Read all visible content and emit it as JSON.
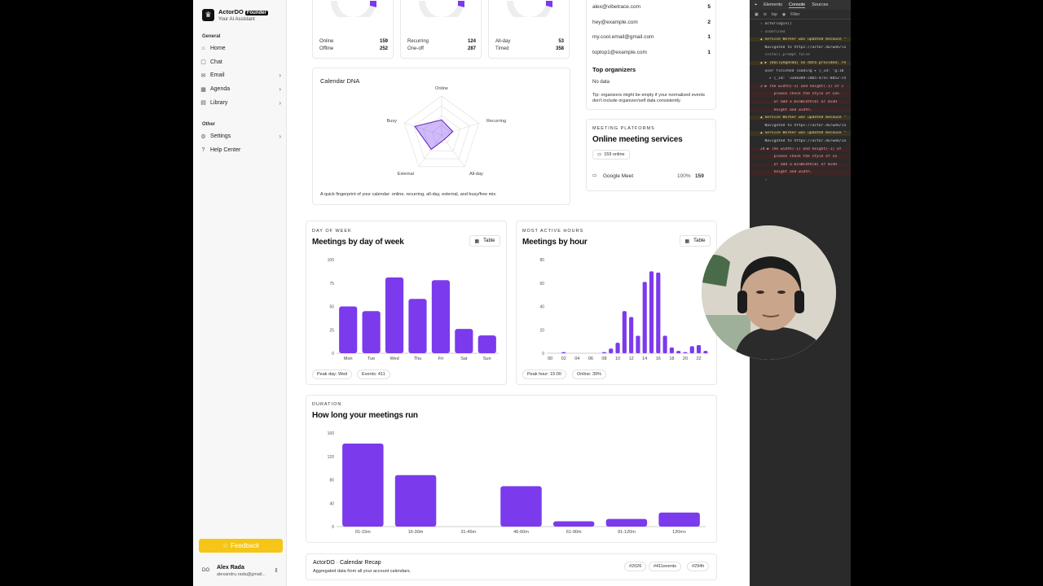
{
  "sidebar": {
    "brand": {
      "name": "ActorDO",
      "badge": "Founder",
      "subtitle": "Your AI Assistant"
    },
    "general_label": "General",
    "items": [
      {
        "label": "Home",
        "icon": "home-icon",
        "chevron": false
      },
      {
        "label": "Chat",
        "icon": "chat-icon",
        "chevron": false
      },
      {
        "label": "Email",
        "icon": "mail-icon",
        "chevron": true
      },
      {
        "label": "Agenda",
        "icon": "calendar-icon",
        "chevron": true
      },
      {
        "label": "Library",
        "icon": "book-icon",
        "chevron": true
      }
    ],
    "other_label": "Other",
    "other_items": [
      {
        "label": "Settings",
        "icon": "gear-icon",
        "chevron": true
      },
      {
        "label": "Help Center",
        "icon": "help-icon",
        "chevron": false
      }
    ],
    "feedback_label": "Feedback",
    "user": {
      "initials": "DO",
      "name": "Alex Rada",
      "email": "alexandru.rada@gmail..."
    }
  },
  "stats": {
    "online": {
      "k1": "Online",
      "v1": "159",
      "k2": "Offline",
      "v2": "252"
    },
    "recurring": {
      "k1": "Recurring",
      "v1": "124",
      "k2": "One-off",
      "v2": "287"
    },
    "allday": {
      "k1": "All-day",
      "v1": "53",
      "k2": "Timed",
      "v2": "358"
    }
  },
  "attendees": [
    {
      "email": "alex@vibetrace.com",
      "count": "5"
    },
    {
      "email": "hey@example.com",
      "count": "2"
    },
    {
      "email": "my.cool.email@gmail.com",
      "count": "1"
    },
    {
      "email": "toptop1@example.com",
      "count": "1"
    }
  ],
  "organizers": {
    "title": "Top organizers",
    "empty": "No data",
    "tip": "Tip: organizers might be empty if your normalized events don't include organizer/self data consistently."
  },
  "dna": {
    "title": "Calendar DNA",
    "axes": [
      "Online",
      "Recurring",
      "All-day",
      "External",
      "Busy"
    ],
    "values": [
      0.39,
      0.3,
      0.13,
      0.45,
      0.72
    ],
    "caption": "A quick fingerprint of your calendar: online, recurring, all-day, external, and busy/free mix."
  },
  "platforms": {
    "eyebrow": "MEETING PLATFORMS",
    "title": "Online meeting services",
    "chip": "159 online",
    "rows": [
      {
        "name": "Google Meet",
        "pct": "100%",
        "count": "159"
      }
    ]
  },
  "day_chart": {
    "eyebrow": "DAY OF WEEK",
    "title": "Meetings by day of week",
    "table_label": "Table",
    "chips": [
      "Peak day: Wed",
      "Events: 411"
    ],
    "chart_data": {
      "type": "bar",
      "categories": [
        "Mon",
        "Tue",
        "Wed",
        "Thu",
        "Fri",
        "Sat",
        "Sun"
      ],
      "values": [
        50,
        45,
        81,
        58,
        78,
        26,
        19
      ],
      "ylim": [
        0,
        100
      ],
      "yticks": [
        0,
        25,
        50,
        75,
        100
      ],
      "color": "#7c3aed"
    }
  },
  "hour_chart": {
    "eyebrow": "MOST ACTIVE HOURS",
    "title": "Meetings by hour",
    "table_label": "Table",
    "chips": [
      "Peak hour: 15:00",
      "Online: 39%"
    ],
    "chart_data": {
      "type": "bar",
      "categories": [
        "00",
        "01",
        "02",
        "03",
        "04",
        "05",
        "06",
        "07",
        "08",
        "09",
        "10",
        "11",
        "12",
        "13",
        "14",
        "15",
        "16",
        "17",
        "18",
        "19",
        "20",
        "21",
        "22",
        "23"
      ],
      "tick_labels": [
        "00",
        "02",
        "04",
        "06",
        "08",
        "10",
        "12",
        "14",
        "16",
        "18",
        "20",
        "22"
      ],
      "values": [
        0,
        0,
        1,
        0,
        0,
        0,
        0,
        0,
        1,
        4,
        9,
        36,
        31,
        15,
        61,
        70,
        69,
        15,
        5,
        2,
        1,
        6,
        7,
        2
      ],
      "ylim": [
        0,
        80
      ],
      "yticks": [
        0,
        20,
        40,
        60,
        80
      ],
      "color": "#7c3aed"
    }
  },
  "duration_chart": {
    "eyebrow": "DURATION",
    "title": "How long your meetings run",
    "chart_data": {
      "type": "bar",
      "categories": [
        "01-15m",
        "16-30m",
        "31-45m",
        "46-60m",
        "61-90m",
        "91-120m",
        "120m+"
      ],
      "values": [
        142,
        88,
        0,
        69,
        9,
        13,
        24
      ],
      "ylim": [
        0,
        160
      ],
      "yticks": [
        0,
        40,
        80,
        120,
        160
      ],
      "color": "#7c3aed"
    }
  },
  "footer": {
    "title": "ActorDO · Calendar Recap",
    "subtitle": "Aggregated data from all your account calendars.",
    "tags": [
      "#2026",
      "#411events",
      "#294h"
    ]
  },
  "devtools": {
    "tabs": [
      "Elements",
      "Console",
      "Sources"
    ],
    "context": "top",
    "filter": "Filter",
    "lines": [
      {
        "t": "› actorlogin()",
        "k": "in"
      },
      {
        "t": "‹ undefined",
        "k": "out"
      },
      {
        "t": "▲ Service Worker was updated because \"",
        "k": "warn"
      },
      {
        "t": "  Navigated to https://actor.do/web/lo",
        "k": "nav"
      },
      {
        "t": "  install_prompt false",
        "k": "log"
      },
      {
        "t": "▲ ▶ [DailyAgenda] no data provided; re",
        "k": "warn"
      },
      {
        "t": "  user finished loading ▸ {_id: 'g:10",
        "k": "log"
      },
      {
        "t": "    ▸ {_id: '33e8309-c0b5-475c-8852-c4",
        "k": "log"
      },
      {
        "t": "2 ▶ The width(-1) and height(-1) of c",
        "k": "err"
      },
      {
        "t": "      please check the style of con",
        "k": "err"
      },
      {
        "t": "      or add a minWidth(0) or minH",
        "k": "err"
      },
      {
        "t": "      height and width.",
        "k": "err"
      },
      {
        "t": "▲ Service Worker was updated because \"",
        "k": "warn"
      },
      {
        "t": "  Navigated to https://actor.do/web/ca",
        "k": "nav"
      },
      {
        "t": "▲ Service Worker was updated because \"",
        "k": "warn"
      },
      {
        "t": "  Navigated to https://actor.do/web/ca",
        "k": "nav"
      },
      {
        "t": "24 ▶ The width(-1) and height(-1) of",
        "k": "err"
      },
      {
        "t": "      please check the style of co",
        "k": "err"
      },
      {
        "t": "      or add a minWidth(0) or minH",
        "k": "err"
      },
      {
        "t": "      height and width.",
        "k": "err"
      },
      {
        "t": "  ›",
        "k": "in"
      }
    ]
  }
}
